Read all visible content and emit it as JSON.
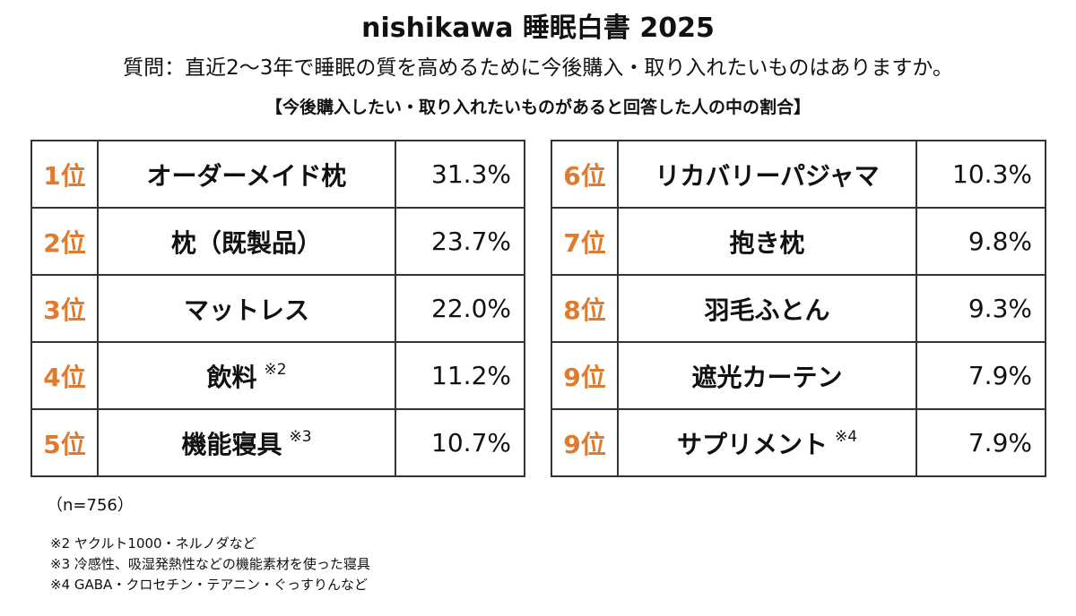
{
  "title": "nishikawa 睡眠白書 2025",
  "question": "質問：直近2〜3年で睡眠の質を高めるために今後購入・取り入れたいものはありますか。",
  "subnote": "【今後購入したい・取り入れたいものがあると回答した人の中の割合】",
  "chart_data": {
    "type": "table",
    "unit": "%",
    "rows": [
      {
        "rank": "1位",
        "item": "オーダーメイド枕",
        "mark": "",
        "value": 31.3,
        "value_label": "31.3%"
      },
      {
        "rank": "2位",
        "item": "枕（既製品）",
        "mark": "",
        "value": 23.7,
        "value_label": "23.7%"
      },
      {
        "rank": "3位",
        "item": "マットレス",
        "mark": "",
        "value": 22.0,
        "value_label": "22.0%"
      },
      {
        "rank": "4位",
        "item": "飲料",
        "mark": "※2",
        "value": 11.2,
        "value_label": "11.2%"
      },
      {
        "rank": "5位",
        "item": "機能寝具",
        "mark": "※3",
        "value": 10.7,
        "value_label": "10.7%"
      },
      {
        "rank": "6位",
        "item": "リカバリーパジャマ",
        "mark": "",
        "value": 10.3,
        "value_label": "10.3%"
      },
      {
        "rank": "7位",
        "item": "抱き枕",
        "mark": "",
        "value": 9.8,
        "value_label": "9.8%"
      },
      {
        "rank": "8位",
        "item": "羽毛ふとん",
        "mark": "",
        "value": 9.3,
        "value_label": "9.3%"
      },
      {
        "rank": "9位",
        "item": "遮光カーテン",
        "mark": "",
        "value": 7.9,
        "value_label": "7.9%"
      },
      {
        "rank": "9位",
        "item": "サプリメント",
        "mark": "※4",
        "value": 7.9,
        "value_label": "7.9%"
      }
    ]
  },
  "sample_size": "（n=756）",
  "footnotes": [
    "※2 ヤクルト1000・ネルノダなど",
    "※3 冷感性、吸湿発熱性などの機能素材を使った寝具",
    "※4 GABA・クロセチン・テアニン・ぐっすりんなど"
  ],
  "colors": {
    "rank": "#e07a2e",
    "border": "#333333",
    "text": "#111111"
  }
}
